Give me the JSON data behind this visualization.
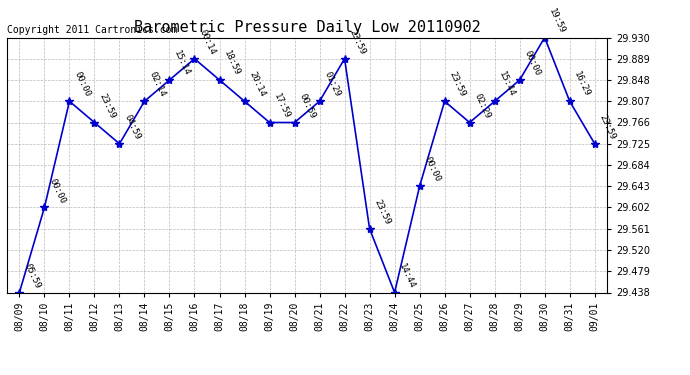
{
  "title": "Barometric Pressure Daily Low 20110902",
  "copyright": "Copyright 2011 Cartronics.com",
  "background_color": "#ffffff",
  "line_color": "#0000cc",
  "marker_color": "#0000cc",
  "grid_color": "#aaaaaa",
  "text_color": "#000000",
  "ylim_min": 29.438,
  "ylim_max": 29.93,
  "yticks": [
    29.438,
    29.479,
    29.52,
    29.561,
    29.602,
    29.643,
    29.684,
    29.725,
    29.766,
    29.807,
    29.848,
    29.889,
    29.93
  ],
  "dates": [
    "08/09",
    "08/10",
    "08/11",
    "08/12",
    "08/13",
    "08/14",
    "08/15",
    "08/16",
    "08/17",
    "08/18",
    "08/19",
    "08/20",
    "08/21",
    "08/22",
    "08/23",
    "08/24",
    "08/25",
    "08/26",
    "08/27",
    "08/28",
    "08/29",
    "08/30",
    "08/31",
    "09/01"
  ],
  "values": [
    29.438,
    29.602,
    29.807,
    29.766,
    29.725,
    29.807,
    29.848,
    29.889,
    29.848,
    29.807,
    29.766,
    29.766,
    29.807,
    29.889,
    29.561,
    29.438,
    29.643,
    29.807,
    29.766,
    29.807,
    29.848,
    29.93,
    29.807,
    29.725
  ],
  "labels": [
    "05:59",
    "00:00",
    "00:00",
    "23:59",
    "04:59",
    "02:14",
    "15:14",
    "00:14",
    "18:59",
    "20:14",
    "17:59",
    "00:59",
    "01:29",
    "23:59",
    "23:59",
    "14:44",
    "00:00",
    "23:59",
    "02:29",
    "15:44",
    "00:00",
    "19:59",
    "16:29",
    "23:59"
  ],
  "title_fontsize": 11,
  "tick_fontsize": 7,
  "label_fontsize": 6.5,
  "copyright_fontsize": 7
}
